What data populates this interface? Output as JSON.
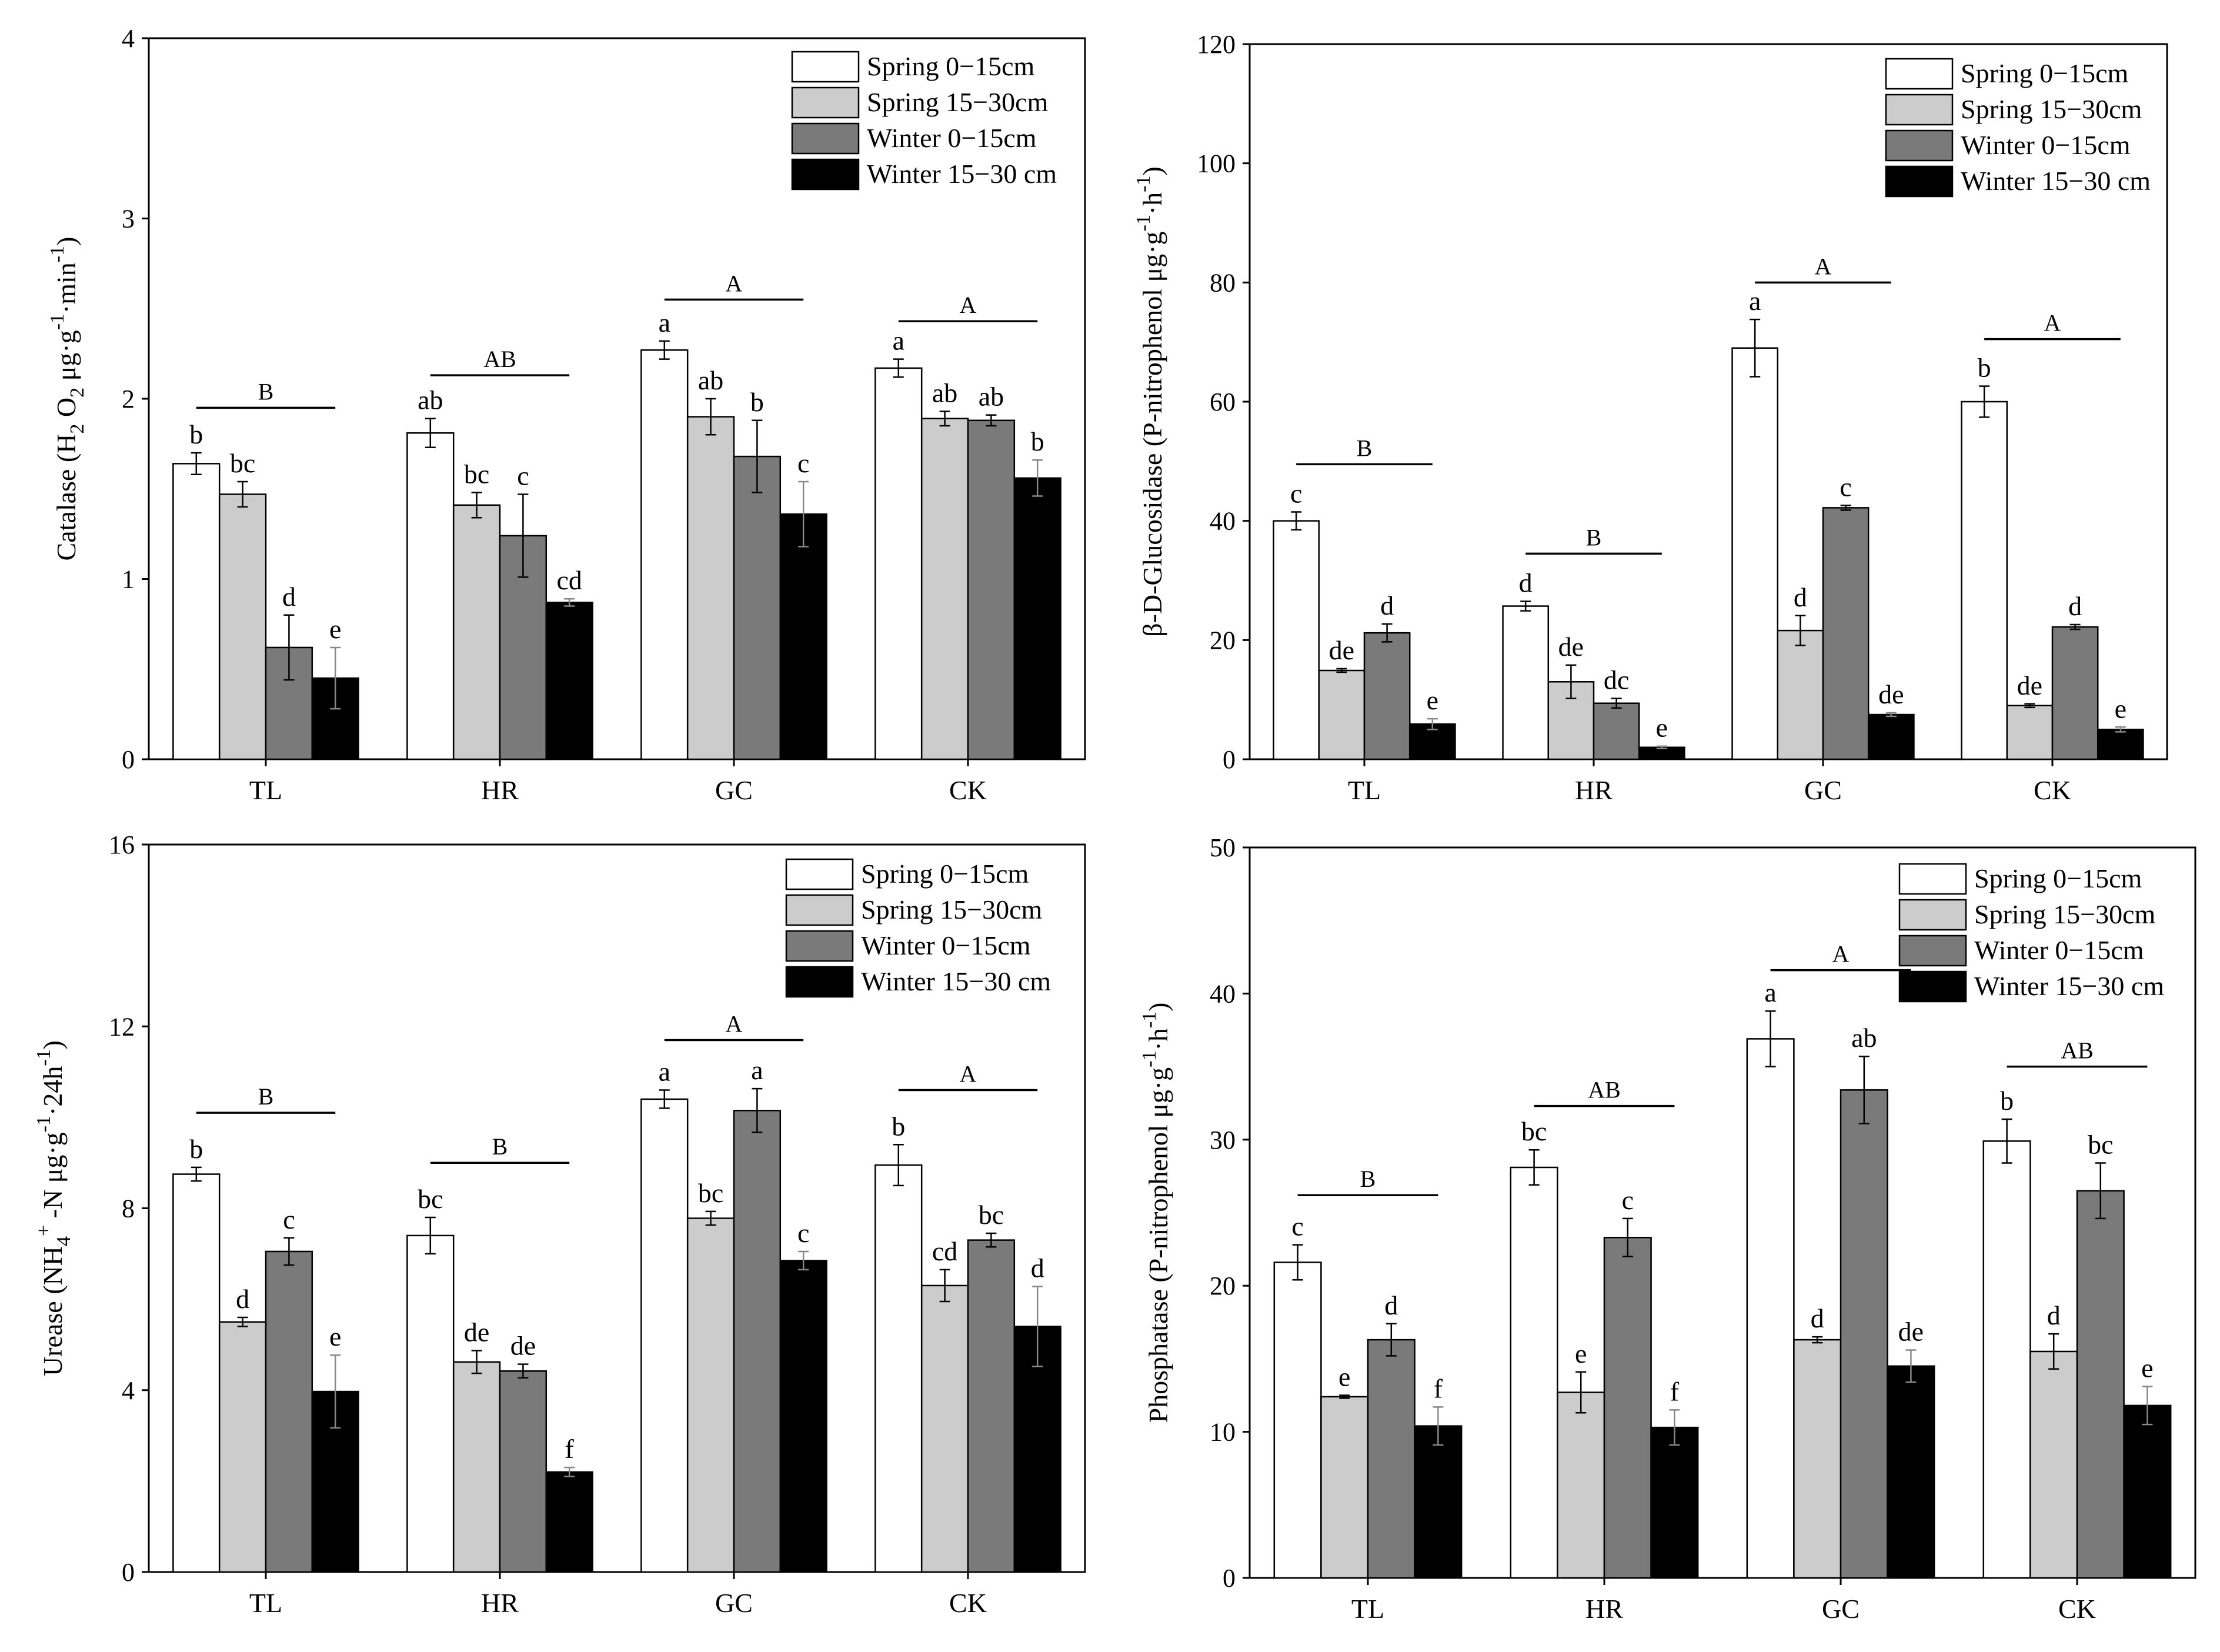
{
  "legend_labels": [
    "Spring 0−15cm",
    "Spring 15−30cm",
    "Winter 0−15cm",
    "Winter 15−30 cm"
  ],
  "series_colors": [
    "#ffffff",
    "#cccccc",
    "#7a7a7a",
    "#000000"
  ],
  "chart_data": [
    {
      "type": "bar",
      "title": "",
      "ylabel": "Catalase (H2O2 μg·g⁻¹·min⁻¹)",
      "xlabel": "",
      "categories": [
        "TL",
        "HR",
        "GC",
        "CK"
      ],
      "ylim": [
        0,
        4
      ],
      "yticks": [
        "0",
        "1",
        "2",
        "3",
        "4"
      ],
      "legend_position": "top-right",
      "series": [
        {
          "name": "Spring 0−15cm",
          "values": [
            1.64,
            1.81,
            2.27,
            2.17
          ],
          "errors": [
            0.06,
            0.08,
            0.05,
            0.05
          ],
          "letters": [
            "b",
            "ab",
            "a",
            "a"
          ]
        },
        {
          "name": "Spring 15−30cm",
          "values": [
            1.47,
            1.41,
            1.9,
            1.89
          ],
          "errors": [
            0.07,
            0.07,
            0.1,
            0.04
          ],
          "letters": [
            "bc",
            "bc",
            "ab",
            "ab"
          ]
        },
        {
          "name": "Winter 0−15cm",
          "values": [
            0.62,
            1.24,
            1.68,
            1.88
          ],
          "errors": [
            0.18,
            0.23,
            0.2,
            0.03
          ],
          "letters": [
            "d",
            "c",
            "b",
            "ab"
          ]
        },
        {
          "name": "Winter 15−30 cm",
          "values": [
            0.45,
            0.87,
            1.36,
            1.56
          ],
          "errors": [
            0.17,
            0.02,
            0.18,
            0.1
          ],
          "letters": [
            "e",
            "cd",
            "c",
            "b"
          ]
        }
      ],
      "group_letters": [
        "B",
        "AB",
        "A",
        "A"
      ],
      "group_line_values": [
        1.95,
        2.13,
        2.55,
        2.43
      ]
    },
    {
      "type": "bar",
      "title": "",
      "ylabel": "β-D-Glucosidase (P-nitrophenol μg·g⁻¹·h⁻¹)",
      "xlabel": "",
      "categories": [
        "TL",
        "HR",
        "GC",
        "CK"
      ],
      "ylim": [
        0,
        120
      ],
      "yticks": [
        "0",
        "20",
        "40",
        "60",
        "80",
        "100",
        "120"
      ],
      "legend_position": "top-right",
      "series": [
        {
          "name": "Spring 0−15cm",
          "values": [
            40.0,
            25.7,
            69.0,
            60.0
          ],
          "errors": [
            1.5,
            0.8,
            4.8,
            2.6
          ],
          "letters": [
            "c",
            "d",
            "a",
            "b"
          ]
        },
        {
          "name": "Spring 15−30cm",
          "values": [
            14.9,
            13.0,
            21.6,
            9.0
          ],
          "errors": [
            0.3,
            2.8,
            2.5,
            0.3
          ],
          "letters": [
            "de",
            "de",
            "d",
            "de"
          ]
        },
        {
          "name": "Winter 0−15cm",
          "values": [
            21.2,
            9.4,
            42.2,
            22.2
          ],
          "errors": [
            1.5,
            0.8,
            0.4,
            0.4
          ],
          "letters": [
            "d",
            "dc",
            "c",
            "d"
          ]
        },
        {
          "name": "Winter 15−30 cm",
          "values": [
            5.9,
            2.0,
            7.5,
            5.0
          ],
          "errors": [
            0.9,
            0.2,
            0.3,
            0.4
          ],
          "letters": [
            "e",
            "e",
            "de",
            "e"
          ]
        }
      ],
      "group_letters": [
        "B",
        "B",
        "A",
        "A"
      ],
      "group_line_values": [
        49.5,
        34.5,
        80.0,
        70.5
      ]
    },
    {
      "type": "bar",
      "title": "",
      "ylabel": "Urease (NH4⁺-N μg·g⁻¹·24h⁻¹)",
      "xlabel": "",
      "categories": [
        "TL",
        "HR",
        "GC",
        "CK"
      ],
      "ylim": [
        0,
        16
      ],
      "yticks": [
        "0",
        "4",
        "8",
        "12",
        "16"
      ],
      "legend_position": "top-right",
      "series": [
        {
          "name": "Spring 0−15cm",
          "values": [
            8.75,
            7.4,
            10.4,
            8.95
          ],
          "errors": [
            0.15,
            0.4,
            0.2,
            0.45
          ],
          "letters": [
            "b",
            "bc",
            "a",
            "b"
          ]
        },
        {
          "name": "Spring 15−30cm",
          "values": [
            5.5,
            4.62,
            7.78,
            6.3
          ],
          "errors": [
            0.1,
            0.25,
            0.15,
            0.35
          ],
          "letters": [
            "d",
            "de",
            "bc",
            "cd"
          ]
        },
        {
          "name": "Winter 0−15cm",
          "values": [
            7.05,
            4.42,
            10.15,
            7.3
          ],
          "errors": [
            0.3,
            0.15,
            0.48,
            0.15
          ],
          "letters": [
            "c",
            "de",
            "a",
            "bc"
          ]
        },
        {
          "name": "Winter 15−30 cm",
          "values": [
            3.97,
            2.2,
            6.85,
            5.4
          ],
          "errors": [
            0.8,
            0.1,
            0.2,
            0.88
          ],
          "letters": [
            "e",
            "f",
            "c",
            "d"
          ]
        }
      ],
      "group_letters": [
        "B",
        "B",
        "A",
        "A"
      ],
      "group_line_values": [
        10.1,
        9.0,
        11.7,
        10.6
      ]
    },
    {
      "type": "bar",
      "title": "",
      "ylabel": "Phosphatase (P-nitrophenol μg·g⁻¹·h⁻¹)",
      "xlabel": "",
      "categories": [
        "TL",
        "HR",
        "GC",
        "CK"
      ],
      "ylim": [
        0,
        50
      ],
      "yticks": [
        "0",
        "10",
        "20",
        "30",
        "40",
        "50"
      ],
      "legend_position": "top-right",
      "series": [
        {
          "name": "Spring 0−15cm",
          "values": [
            21.6,
            28.1,
            36.9,
            29.9
          ],
          "errors": [
            1.2,
            1.2,
            1.9,
            1.5
          ],
          "letters": [
            "c",
            "bc",
            "a",
            "b"
          ]
        },
        {
          "name": "Spring 15−30cm",
          "values": [
            12.4,
            12.7,
            16.3,
            15.5
          ],
          "errors": [
            0.1,
            1.4,
            0.2,
            1.2
          ],
          "letters": [
            "e",
            "e",
            "d",
            "d"
          ]
        },
        {
          "name": "Winter 0−15cm",
          "values": [
            16.3,
            23.3,
            33.4,
            26.5
          ],
          "errors": [
            1.1,
            1.3,
            2.3,
            1.9
          ],
          "letters": [
            "d",
            "c",
            "ab",
            "bc"
          ]
        },
        {
          "name": "Winter 15−30 cm",
          "values": [
            10.4,
            10.3,
            14.5,
            11.8
          ],
          "errors": [
            1.3,
            1.2,
            1.1,
            1.3
          ],
          "letters": [
            "f",
            "f",
            "de",
            "e"
          ]
        }
      ],
      "group_letters": [
        "B",
        "AB",
        "A",
        "AB"
      ],
      "group_line_values": [
        26.2,
        32.3,
        41.6,
        35.0
      ]
    }
  ]
}
